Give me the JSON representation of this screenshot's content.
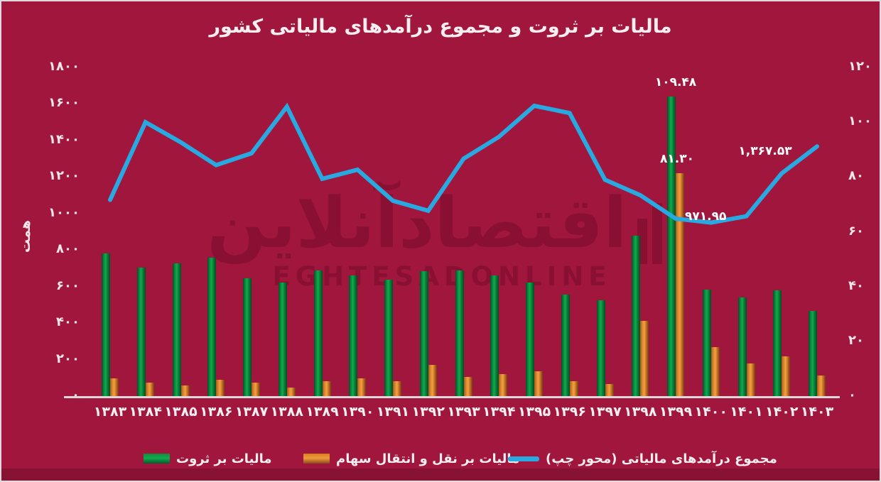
{
  "colors": {
    "background": "#A0163C",
    "green_bar": "#12AA4E",
    "orange_bar": "#F2A044",
    "blue_line": "#29A9E1",
    "text": "#F8EEF1"
  },
  "watermark": {
    "line1": "اقتصادآنلاین",
    "line2": "EGHTESADONLINE"
  },
  "legend": {
    "items": [
      {
        "key": "wealth-tax",
        "label": "مالیات بر ثروت",
        "swatch": "green-bar"
      },
      {
        "key": "stock-transfer-tax",
        "label": "مالیات بر نقل و انتقال سهام",
        "swatch": "orange-bar"
      },
      {
        "key": "total-tax-revenues",
        "label": "مجموع درآمدهای مالیاتی (محور چپ)",
        "swatch": "blue-line"
      }
    ]
  },
  "chart_data": {
    "type": "combo",
    "title": "مالیات بر ثروت و مجموع درآمدهای مالیاتی کشور",
    "unit_label": "همت",
    "categories": [
      1383,
      1384,
      1385,
      1386,
      1387,
      1388,
      1389,
      1390,
      1391,
      1392,
      1393,
      1394,
      1395,
      1396,
      1397,
      1398,
      1399,
      1400,
      1401,
      1402,
      1403
    ],
    "categories_fa": [
      "۱۳۸۳",
      "۱۳۸۴",
      "۱۳۸۵",
      "۱۳۸۶",
      "۱۳۸۷",
      "۱۳۸۸",
      "۱۳۸۹",
      "۱۳۹۰",
      "۱۳۹۱",
      "۱۳۹۲",
      "۱۳۹۳",
      "۱۳۹۴",
      "۱۳۹۵",
      "۱۳۹۶",
      "۱۳۹۷",
      "۱۳۹۸",
      "۱۳۹۹",
      "۱۴۰۰",
      "۱۴۰۱",
      "۱۴۰۲",
      "۱۴۰۳"
    ],
    "y_left": {
      "label": "همت",
      "min": 0,
      "max": 1800,
      "step": 200,
      "ticks_fa": [
        "۰",
        "۲۰۰",
        "۴۰۰",
        "۶۰۰",
        "۸۰۰",
        "۱۰۰۰",
        "۱۲۰۰",
        "۱۴۰۰",
        "۱۶۰۰",
        "۱۸۰۰"
      ]
    },
    "y_right": {
      "min": 0,
      "max": 120,
      "step": 20,
      "ticks_fa": [
        "۰",
        "۲۰",
        "۴۰",
        "۶۰",
        "۸۰",
        "۱۰۰",
        "۱۲۰"
      ]
    },
    "series": [
      {
        "key": "wealth-tax",
        "name": "مالیات بر ثروت",
        "type": "bar",
        "axis": "right",
        "color": "#12AA4E",
        "values": [
          52,
          47,
          48.5,
          50.5,
          43,
          41.5,
          46,
          44,
          42.5,
          45.5,
          46,
          44,
          41.5,
          37,
          35,
          58.5,
          109.48,
          39,
          36,
          38.5,
          31
        ]
      },
      {
        "key": "stock-transfer-tax",
        "name": "مالیات بر نقل و انتقال سهام",
        "type": "bar",
        "axis": "right",
        "color": "#F2A044",
        "values": [
          6.5,
          5,
          4,
          6,
          5,
          3,
          5.5,
          6.5,
          5.5,
          11.5,
          7,
          8,
          9,
          5.5,
          4.5,
          27.5,
          81.3,
          18,
          12,
          14.5,
          7.5
        ]
      },
      {
        "key": "total-tax-revenues",
        "name": "مجموع درآمدهای مالیاتی (محور چپ)",
        "type": "line",
        "axis": "left",
        "color": "#29A9E1",
        "values": [
          1075,
          1500,
          1390,
          1265,
          1330,
          1585,
          1190,
          1240,
          1070,
          1015,
          1300,
          1420,
          1590,
          1550,
          1185,
          1100,
          971.95,
          950,
          985,
          1220,
          1367.53
        ]
      }
    ],
    "annotations": [
      {
        "text": "۱۰۹.۴۸",
        "value": 109.48,
        "series": "wealth-tax",
        "year": 1399
      },
      {
        "text": "۸۱.۳۰",
        "value": 81.3,
        "series": "stock-transfer-tax",
        "year": 1399
      },
      {
        "text": "۹۷۱.۹۵",
        "value": 971.95,
        "series": "total-tax-revenues",
        "year": 1399
      },
      {
        "text": "۱,۳۶۷.۵۳",
        "value": 1367.53,
        "series": "total-tax-revenues",
        "year": 1403
      }
    ],
    "legend_position": "bottom",
    "grid": false
  }
}
